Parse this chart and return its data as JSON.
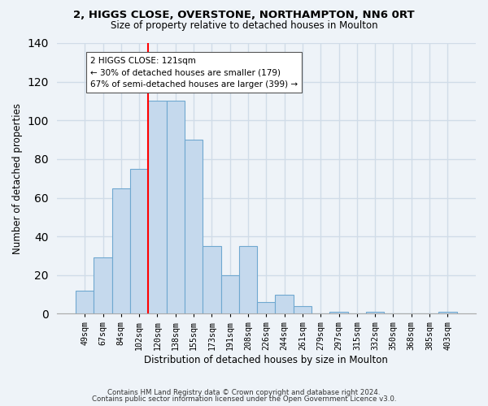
{
  "title_line1": "2, HIGGS CLOSE, OVERSTONE, NORTHAMPTON, NN6 0RT",
  "title_line2": "Size of property relative to detached houses in Moulton",
  "xlabel": "Distribution of detached houses by size in Moulton",
  "ylabel": "Number of detached properties",
  "footer_line1": "Contains HM Land Registry data © Crown copyright and database right 2024.",
  "footer_line2": "Contains public sector information licensed under the Open Government Licence v3.0.",
  "bar_labels": [
    "49sqm",
    "67sqm",
    "84sqm",
    "102sqm",
    "120sqm",
    "138sqm",
    "155sqm",
    "173sqm",
    "191sqm",
    "208sqm",
    "226sqm",
    "244sqm",
    "261sqm",
    "279sqm",
    "297sqm",
    "315sqm",
    "332sqm",
    "350sqm",
    "368sqm",
    "385sqm",
    "403sqm"
  ],
  "bar_values": [
    12,
    29,
    65,
    75,
    110,
    110,
    90,
    35,
    20,
    35,
    6,
    10,
    4,
    0,
    1,
    0,
    1,
    0,
    0,
    0,
    1
  ],
  "bar_color": "#c5d9ed",
  "bar_edge_color": "#6fa8d0",
  "vline_index": 4,
  "vline_color": "red",
  "annotation_title": "2 HIGGS CLOSE: 121sqm",
  "annotation_line1": "← 30% of detached houses are smaller (179)",
  "annotation_line2": "67% of semi-detached houses are larger (399) →",
  "annotation_box_color": "white",
  "annotation_box_edge": "#555555",
  "ylim": [
    0,
    140
  ],
  "yticks": [
    0,
    20,
    40,
    60,
    80,
    100,
    120,
    140
  ],
  "grid_color": "#d0dce8",
  "background_color": "#eef3f8",
  "plot_bg_color": "#eef3f8"
}
